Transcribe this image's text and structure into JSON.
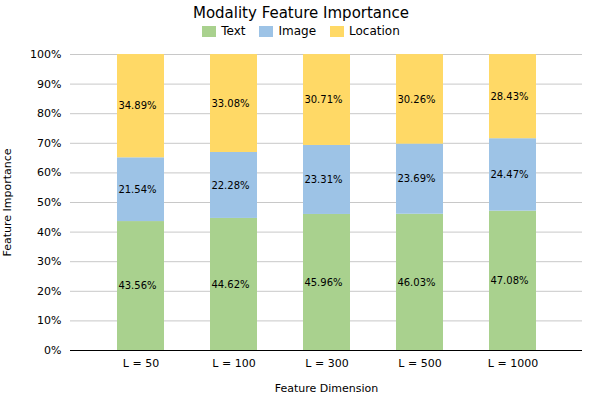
{
  "chart_data": {
    "type": "bar",
    "stacked": true,
    "title": "Modality Feature Importance",
    "xlabel": "Feature Dimension",
    "ylabel": "Feature Importance",
    "categories": [
      "L = 50",
      "L = 100",
      "L = 300",
      "L = 500",
      "L = 1000"
    ],
    "series": [
      {
        "name": "Text",
        "color": "#a9d18e",
        "values": [
          43.56,
          44.62,
          45.96,
          46.03,
          47.08
        ],
        "value_labels": [
          "43.56%",
          "44.62%",
          "45.96%",
          "46.03%",
          "47.08%"
        ]
      },
      {
        "name": "Image",
        "color": "#9dc3e6",
        "values": [
          21.54,
          22.28,
          23.31,
          23.69,
          24.47
        ],
        "value_labels": [
          "21.54%",
          "22.28%",
          "23.31%",
          "23.69%",
          "24.47%"
        ]
      },
      {
        "name": "Location",
        "color": "#ffd966",
        "values": [
          34.89,
          33.08,
          30.71,
          30.26,
          28.43
        ],
        "value_labels": [
          "34.89%",
          "33.08%",
          "30.71%",
          "30.26%",
          "28.43%"
        ]
      }
    ],
    "ylim": [
      0,
      100
    ],
    "yticks": [
      {
        "value": 0,
        "label": "0%"
      },
      {
        "value": 10,
        "label": "10%"
      },
      {
        "value": 20,
        "label": "20%"
      },
      {
        "value": 30,
        "label": "30%"
      },
      {
        "value": 40,
        "label": "40%"
      },
      {
        "value": 50,
        "label": "50%"
      },
      {
        "value": 60,
        "label": "60%"
      },
      {
        "value": 70,
        "label": "70%"
      },
      {
        "value": 80,
        "label": "80%"
      },
      {
        "value": 90,
        "label": "90%"
      },
      {
        "value": 100,
        "label": "100%"
      }
    ],
    "grid": true,
    "legend": "top",
    "data_labels": true
  }
}
